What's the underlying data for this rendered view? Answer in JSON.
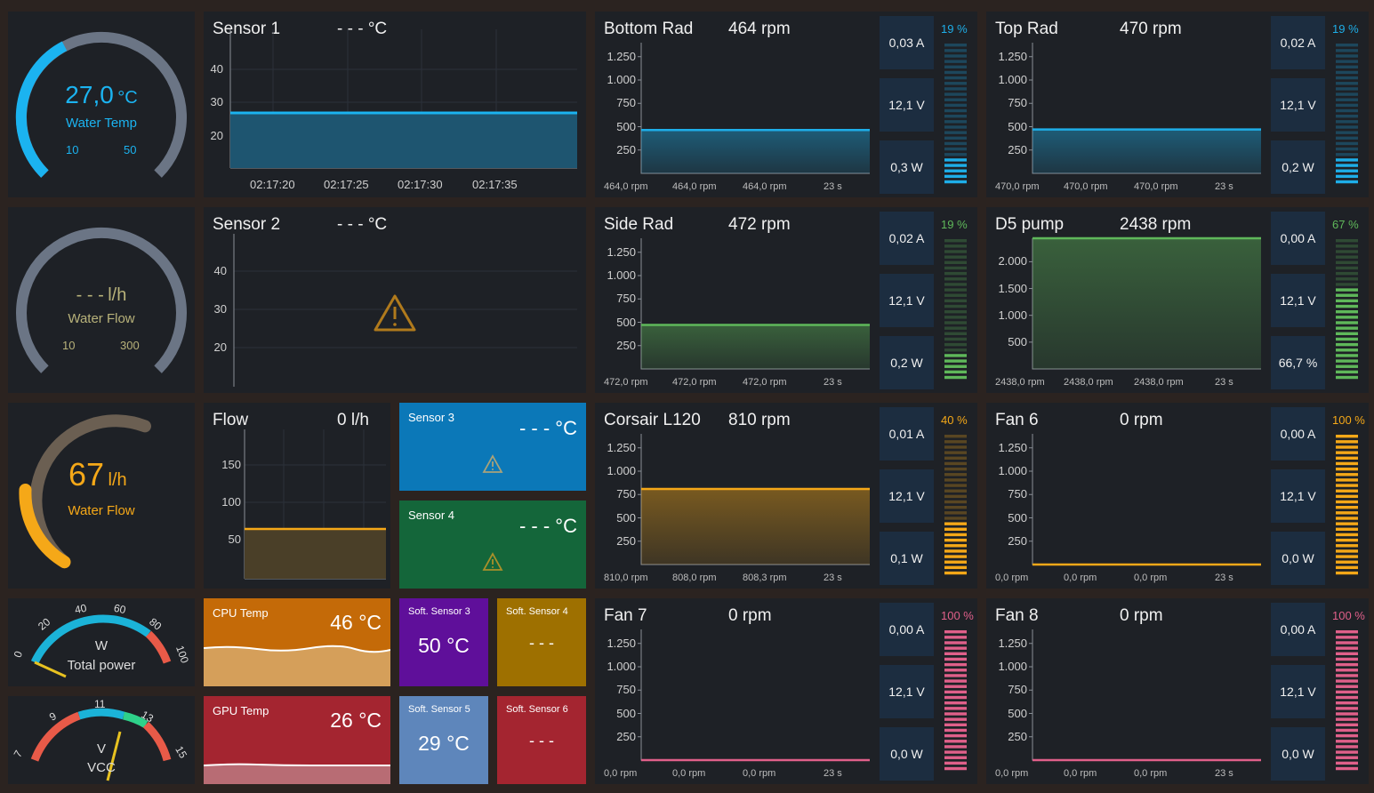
{
  "gauges": {
    "temp": {
      "value": "27,0",
      "unit": "°C",
      "label": "Water Temp",
      "min": "10",
      "max": "50",
      "color": "#1bb3f0"
    },
    "flow1": {
      "value": "- - -",
      "unit": "l/h",
      "label": "Water Flow",
      "min": "10",
      "max": "300",
      "color": "#b8b27a"
    },
    "flow2": {
      "value": "67",
      "unit": "l/h",
      "label": "Water Flow",
      "color": "#f5a818"
    },
    "power": {
      "label": "Total power",
      "unit": "W",
      "ticks": [
        "0",
        "20",
        "40",
        "60",
        "80",
        "100"
      ],
      "value": 0
    },
    "vcc": {
      "label": "VCC",
      "unit": "V",
      "ticks": [
        "7",
        "9",
        "11",
        "13",
        "15"
      ],
      "value": 12.1
    }
  },
  "sensor1": {
    "title": "Sensor 1",
    "value": "- - - °C",
    "yticks": [
      "40",
      "30",
      "20"
    ],
    "xticks": [
      "02:17:20",
      "02:17:25",
      "02:17:30",
      "02:17:35"
    ],
    "level": 27
  },
  "sensor2": {
    "title": "Sensor 2",
    "value": "- - - °C",
    "yticks": [
      "40",
      "30",
      "20"
    ]
  },
  "flowchart": {
    "title": "Flow",
    "value": "0 l/h",
    "yticks": [
      "150",
      "100",
      "50"
    ],
    "level": 67
  },
  "sensor3": {
    "label": "Sensor 3",
    "value": "- - - °C",
    "color": "#0b78b8"
  },
  "sensor4": {
    "label": "Sensor 4",
    "value": "- - - °C",
    "color": "#14663a"
  },
  "cpu": {
    "label": "CPU Temp",
    "value": "46 °C",
    "color": "#c46a08"
  },
  "gpu": {
    "label": "GPU Temp",
    "value": "26 °C",
    "color": "#a42530"
  },
  "soft3": {
    "label": "Soft. Sensor 3",
    "value": "50 °C",
    "color": "#5f0f9a"
  },
  "soft4": {
    "label": "Soft. Sensor 4",
    "value": "- - -",
    "color": "#9e7000"
  },
  "soft5": {
    "label": "Soft. Sensor 5",
    "value": "29 °C",
    "color": "#5e86bb"
  },
  "soft6": {
    "label": "Soft. Sensor 6",
    "value": "- - -",
    "color": "#a42530"
  },
  "fans": [
    {
      "name": "Bottom Rad",
      "rpm": "464 rpm",
      "yticks": [
        "1.250",
        "1.000",
        "750",
        "500",
        "250"
      ],
      "foot": [
        "464,0 rpm",
        "464,0 rpm",
        "464,0 rpm",
        "23 s"
      ],
      "current": "0,03 A",
      "voltage": "12,1 V",
      "power": "0,3 W",
      "pct": "19 %",
      "level": 19,
      "value": 464,
      "ymax": 1400,
      "color": "#1eaee8"
    },
    {
      "name": "Top Rad",
      "rpm": "470 rpm",
      "yticks": [
        "1.250",
        "1.000",
        "750",
        "500",
        "250"
      ],
      "foot": [
        "470,0 rpm",
        "470,0 rpm",
        "470,0 rpm",
        "23 s"
      ],
      "current": "0,02 A",
      "voltage": "12,1 V",
      "power": "0,2 W",
      "pct": "19 %",
      "level": 19,
      "value": 470,
      "ymax": 1400,
      "color": "#1eaee8"
    },
    {
      "name": "Side Rad",
      "rpm": "472 rpm",
      "yticks": [
        "1.250",
        "1.000",
        "750",
        "500",
        "250"
      ],
      "foot": [
        "472,0 rpm",
        "472,0 rpm",
        "472,0 rpm",
        "23 s"
      ],
      "current": "0,02 A",
      "voltage": "12,1 V",
      "power": "0,2 W",
      "pct": "19 %",
      "level": 19,
      "value": 472,
      "ymax": 1400,
      "color": "#5fb85a"
    },
    {
      "name": "D5 pump",
      "rpm": "2438 rpm",
      "yticks": [
        "2.000",
        "1.500",
        "1.000",
        "500"
      ],
      "foot": [
        "2438,0 rpm",
        "2438,0 rpm",
        "2438,0 rpm",
        "23 s"
      ],
      "current": "0,00 A",
      "voltage": "12,1 V",
      "power": "66,7 %",
      "pct": "67 %",
      "level": 67,
      "value": 2438,
      "ymax": 2438,
      "color": "#5fb85a"
    },
    {
      "name": "Corsair L120",
      "rpm": "810 rpm",
      "yticks": [
        "1.250",
        "1.000",
        "750",
        "500",
        "250"
      ],
      "foot": [
        "810,0 rpm",
        "808,0 rpm",
        "808,3 rpm",
        "23 s"
      ],
      "current": "0,01 A",
      "voltage": "12,1 V",
      "power": "0,1 W",
      "pct": "40 %",
      "level": 40,
      "value": 810,
      "ymax": 1400,
      "color": "#f5a818"
    },
    {
      "name": "Fan 6",
      "rpm": "0 rpm",
      "yticks": [
        "1.250",
        "1.000",
        "750",
        "500",
        "250"
      ],
      "foot": [
        "0,0 rpm",
        "0,0 rpm",
        "0,0 rpm",
        "23 s"
      ],
      "current": "0,00 A",
      "voltage": "12,1 V",
      "power": "0,0 W",
      "pct": "100 %",
      "level": 100,
      "value": 0,
      "ymax": 1400,
      "color": "#f5a818"
    },
    {
      "name": "Fan 7",
      "rpm": "0 rpm",
      "yticks": [
        "1.250",
        "1.000",
        "750",
        "500",
        "250"
      ],
      "foot": [
        "0,0 rpm",
        "0,0 rpm",
        "0,0 rpm",
        "23 s"
      ],
      "current": "0,00 A",
      "voltage": "12,1 V",
      "power": "0,0 W",
      "pct": "100 %",
      "level": 100,
      "value": 0,
      "ymax": 1400,
      "color": "#e0608a"
    },
    {
      "name": "Fan 8",
      "rpm": "0 rpm",
      "yticks": [
        "1.250",
        "1.000",
        "750",
        "500",
        "250"
      ],
      "foot": [
        "0,0 rpm",
        "0,0 rpm",
        "0,0 rpm",
        "23 s"
      ],
      "current": "0,00 A",
      "voltage": "12,1 V",
      "power": "0,0 W",
      "pct": "100 %",
      "level": 100,
      "value": 0,
      "ymax": 1400,
      "color": "#e0608a"
    }
  ]
}
